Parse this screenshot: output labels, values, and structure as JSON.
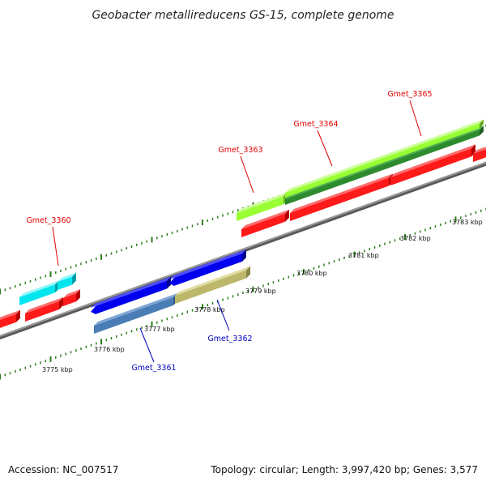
{
  "title": "Geobacter metallireducens GS-15, complete genome",
  "footer": {
    "accession": "Accession: NC_007517",
    "topology": "Topology: circular; Length: 3,997,420 bp; Genes: 3,577"
  },
  "colors": {
    "backbone": "#8c8c8c",
    "tick": "#2e7d1e",
    "label_plus": "#e00000",
    "label_minus": "#0000bb"
  },
  "kbp_labels": [
    "3775 kbp",
    "3776 kbp",
    "3777 kbp",
    "3778 kbp",
    "3779 kbp",
    "3780 kbp",
    "3781 kbp",
    "3782 kbp",
    "3783 kbp"
  ],
  "genes": [
    {
      "name": "Gmet_3360",
      "strand": "+"
    },
    {
      "name": "Gmet_3361",
      "strand": "-"
    },
    {
      "name": "Gmet_3362",
      "strand": "-"
    },
    {
      "name": "Gmet_3363",
      "strand": "+"
    },
    {
      "name": "Gmet_3364",
      "strand": "+"
    },
    {
      "name": "Gmet_3365",
      "strand": "+"
    }
  ]
}
